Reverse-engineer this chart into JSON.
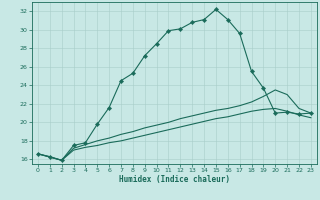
{
  "xlabel": "Humidex (Indice chaleur)",
  "bg_color": "#c8e8e5",
  "grid_color": "#a8ceca",
  "line_color": "#1a6b5a",
  "y_range": [
    15.5,
    33
  ],
  "yticks": [
    16,
    18,
    20,
    22,
    24,
    26,
    28,
    30,
    32
  ],
  "xticks": [
    0,
    1,
    2,
    3,
    4,
    5,
    6,
    7,
    8,
    9,
    10,
    11,
    12,
    13,
    14,
    15,
    16,
    17,
    18,
    19,
    20,
    21,
    22,
    23
  ],
  "line1_x": [
    0,
    1,
    2,
    3,
    4,
    5,
    6,
    7,
    8,
    9,
    10,
    11,
    12,
    13,
    14,
    15,
    16,
    17,
    18,
    19,
    20,
    21,
    22,
    23
  ],
  "line1_y": [
    16.6,
    16.3,
    15.9,
    17.5,
    17.8,
    19.8,
    21.6,
    24.5,
    25.3,
    27.2,
    28.5,
    29.9,
    30.1,
    30.8,
    31.1,
    32.2,
    31.1,
    29.6,
    25.5,
    23.7,
    21.0,
    21.1,
    20.9,
    21.0
  ],
  "line2_x": [
    0,
    2,
    3,
    4,
    5,
    6,
    7,
    8,
    9,
    10,
    11,
    12,
    13,
    14,
    15,
    16,
    17,
    18,
    19,
    20,
    21,
    22,
    23
  ],
  "line2_y": [
    16.6,
    15.9,
    17.2,
    17.6,
    18.0,
    18.3,
    18.7,
    19.0,
    19.4,
    19.7,
    20.0,
    20.4,
    20.7,
    21.0,
    21.3,
    21.5,
    21.8,
    22.2,
    22.8,
    23.5,
    23.0,
    21.5,
    21.0
  ],
  "line3_x": [
    0,
    2,
    3,
    4,
    5,
    6,
    7,
    8,
    9,
    10,
    11,
    12,
    13,
    14,
    15,
    16,
    17,
    18,
    19,
    20,
    21,
    22,
    23
  ],
  "line3_y": [
    16.6,
    15.9,
    17.0,
    17.3,
    17.5,
    17.8,
    18.0,
    18.3,
    18.6,
    18.9,
    19.2,
    19.5,
    19.8,
    20.1,
    20.4,
    20.6,
    20.9,
    21.2,
    21.4,
    21.5,
    21.2,
    20.8,
    20.5
  ]
}
